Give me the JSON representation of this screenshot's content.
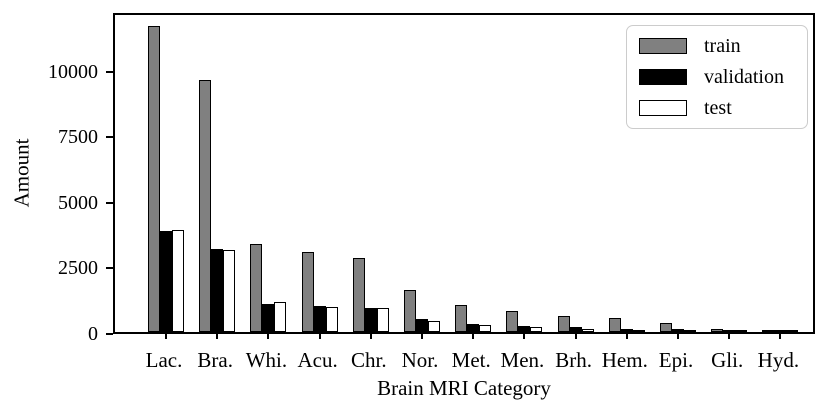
{
  "chart_data": {
    "type": "bar",
    "title": "",
    "xlabel": "Brain MRI Category",
    "ylabel": "Amount",
    "ylim": [
      0,
      12240
    ],
    "yticks": [
      0,
      2500,
      5000,
      7500,
      10000
    ],
    "grid": false,
    "legend_position": "upper right",
    "bar_edge_color": "#000000",
    "categories": [
      "Lac.",
      "Bra.",
      "Whi.",
      "Acu.",
      "Chr.",
      "Nor.",
      "Met.",
      "Men.",
      "Brh.",
      "Hem.",
      "Epi.",
      "Gli.",
      "Hyd."
    ],
    "series": [
      {
        "name": "train",
        "color": "#808080",
        "values": [
          11650,
          9600,
          3350,
          3050,
          2820,
          1620,
          1020,
          790,
          620,
          545,
          340,
          130,
          80
        ]
      },
      {
        "name": "validation",
        "color": "#000000",
        "values": [
          3850,
          3150,
          1080,
          1010,
          915,
          510,
          310,
          240,
          180,
          130,
          120,
          45,
          30
        ]
      },
      {
        "name": "test",
        "color": "#ffffff",
        "values": [
          3900,
          3130,
          1140,
          940,
          915,
          430,
          280,
          200,
          120,
          90,
          85,
          35,
          20
        ]
      }
    ]
  }
}
